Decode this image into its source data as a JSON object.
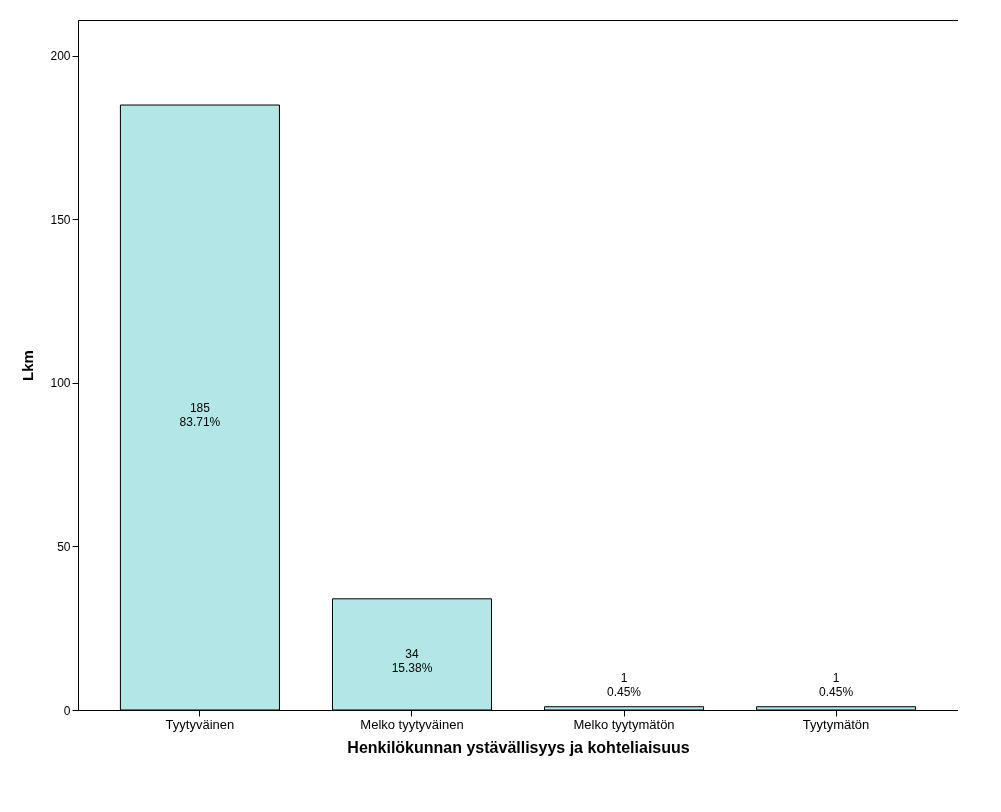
{
  "chart_data": {
    "type": "bar",
    "xlabel": "Henkilökunnan ystävällisyys ja kohteliaisuus",
    "ylabel": "Lkm",
    "categories": [
      "Tyytyväinen",
      "Melko tyytyväinen",
      "Melko tyytymätön",
      "Tyytymätön"
    ],
    "values": [
      185,
      34,
      1,
      1
    ],
    "value_labels": [
      "185\n83.71%",
      "34\n15.38%",
      "1\n0.45%",
      "1\n0.45%"
    ],
    "color": "#b3e6e6",
    "ylim": [
      0,
      211
    ],
    "yticks": [
      0,
      50,
      100,
      150,
      200
    ],
    "grid": false
  }
}
